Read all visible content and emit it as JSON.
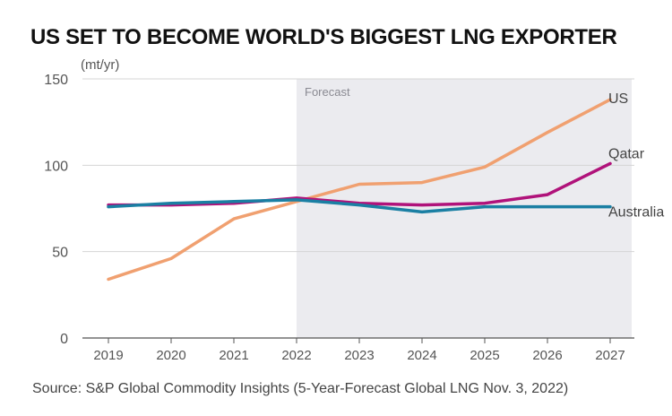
{
  "header": {
    "title": "US SET TO BECOME WORLD'S BIGGEST LNG EXPORTER",
    "unit": "(mt/yr)",
    "source": "Source: S&P Global Commodity Insights (5-Year-Forecast Global LNG Nov. 3, 2022)"
  },
  "chart_data": {
    "type": "line",
    "title": "US SET TO BECOME WORLD'S BIGGEST LNG EXPORTER",
    "xlabel": "",
    "ylabel": "(mt/yr)",
    "x": [
      "2019",
      "2020",
      "2021",
      "2022",
      "2023",
      "2024",
      "2025",
      "2026",
      "2027"
    ],
    "ylim": [
      0,
      150
    ],
    "yticks": [
      0,
      50,
      100,
      150
    ],
    "grid": true,
    "forecast": {
      "label": "Forecast",
      "start": "2022",
      "end": "2027"
    },
    "series": [
      {
        "name": "US",
        "color": "#f0a070",
        "values": [
          34,
          46,
          69,
          79,
          89,
          90,
          99,
          119,
          138
        ]
      },
      {
        "name": "Qatar",
        "color": "#b0127a",
        "values": [
          77,
          77,
          78,
          81,
          78,
          77,
          78,
          83,
          101
        ]
      },
      {
        "name": "Australia",
        "color": "#1a7fa3",
        "values": [
          76,
          78,
          79,
          80,
          77,
          73,
          76,
          76,
          76
        ]
      }
    ]
  }
}
